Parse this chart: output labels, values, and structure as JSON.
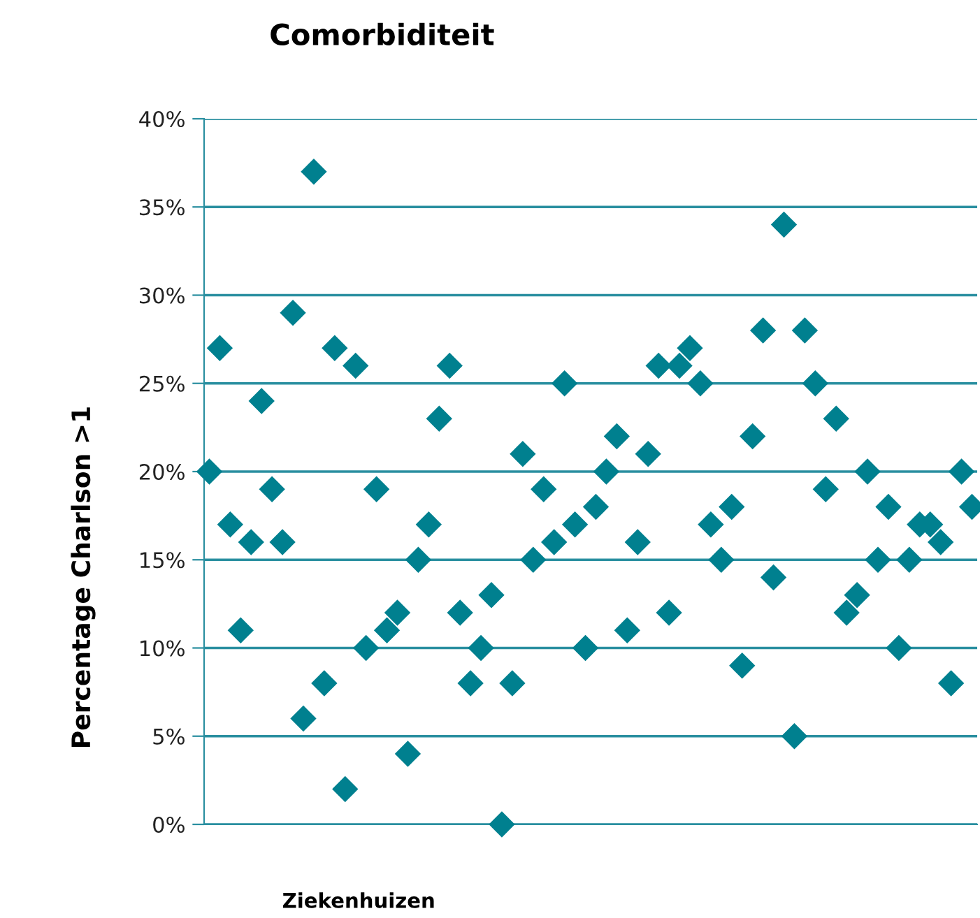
{
  "chart_data": {
    "type": "scatter",
    "title": "Comorbiditeit",
    "xlabel": "Ziekenhuizen",
    "ylabel": "Percentage Charlson >1",
    "categories": [
      null,
      null,
      null,
      null,
      null,
      null,
      null,
      null,
      null,
      null,
      null,
      null,
      null,
      null,
      null,
      null,
      null,
      null,
      null,
      null,
      null,
      null,
      null,
      null,
      null,
      null,
      null,
      null,
      null,
      null,
      null,
      null,
      null,
      null,
      null,
      null,
      null,
      null,
      null,
      null,
      null,
      null,
      null,
      null,
      null,
      null,
      null,
      null,
      null,
      null,
      null,
      null,
      null,
      null,
      null,
      null,
      null,
      null,
      null,
      null,
      null,
      null,
      null,
      null,
      null,
      null,
      null,
      null,
      null,
      null,
      null,
      null,
      null,
      null
    ],
    "values": [
      20,
      27,
      17,
      11,
      16,
      24,
      19,
      16,
      29,
      6,
      37,
      8,
      27,
      2,
      26,
      10,
      19,
      11,
      12,
      4,
      15,
      17,
      23,
      26,
      12,
      8,
      10,
      13,
      0,
      8,
      21,
      15,
      19,
      16,
      25,
      17,
      10,
      18,
      20,
      22,
      11,
      16,
      21,
      26,
      12,
      26,
      27,
      25,
      17,
      15,
      18,
      9,
      22,
      28,
      14,
      34,
      5,
      28,
      25,
      19,
      23,
      12,
      13,
      20,
      15,
      18,
      10,
      15,
      17,
      17,
      16,
      8,
      20,
      18
    ],
    "color": "#00808f",
    "marker": "diamond",
    "grid": "y",
    "ylim": [
      0,
      40
    ],
    "yticks": [
      {
        "value": 0,
        "label": "0%"
      },
      {
        "value": 5,
        "label": "5%"
      },
      {
        "value": 10,
        "label": "10%"
      },
      {
        "value": 15,
        "label": "15%"
      },
      {
        "value": 20,
        "label": "20%"
      },
      {
        "value": 25,
        "label": "25%"
      },
      {
        "value": 30,
        "label": "30%"
      },
      {
        "value": 35,
        "label": "35%"
      },
      {
        "value": 40,
        "label": "40%"
      }
    ],
    "tick_labels": "y"
  }
}
